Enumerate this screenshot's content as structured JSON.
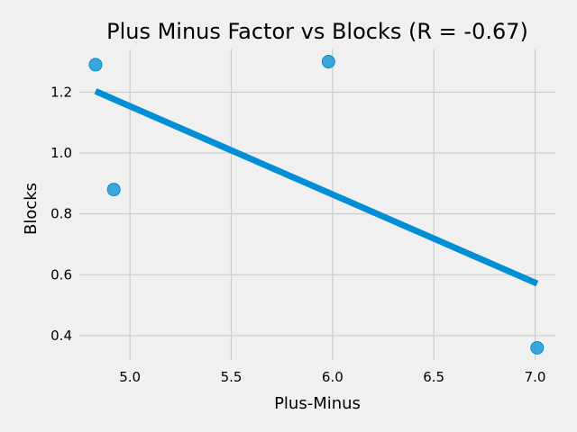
{
  "chart_data": {
    "type": "scatter",
    "title": "Plus Minus Factor vs Blocks (R = -0.67)",
    "xlabel": "Plus-Minus",
    "ylabel": "Blocks",
    "xlim": [
      4.75,
      7.1
    ],
    "ylim": [
      0.32,
      1.34
    ],
    "xticks": [
      5.0,
      5.5,
      6.0,
      6.5,
      7.0
    ],
    "yticks": [
      0.4,
      0.6,
      0.8,
      1.0,
      1.2
    ],
    "grid": true,
    "points": [
      {
        "x": 4.83,
        "y": 1.29
      },
      {
        "x": 4.92,
        "y": 0.88
      },
      {
        "x": 5.98,
        "y": 1.3
      },
      {
        "x": 7.01,
        "y": 0.36
      }
    ],
    "trendline": {
      "x": [
        4.83,
        7.01
      ],
      "y": [
        1.203,
        0.571
      ]
    },
    "colors": {
      "points": "#008fd5",
      "line": "#008fd5",
      "background": "#f0f0f0",
      "grid": "#cbcbcb"
    }
  }
}
